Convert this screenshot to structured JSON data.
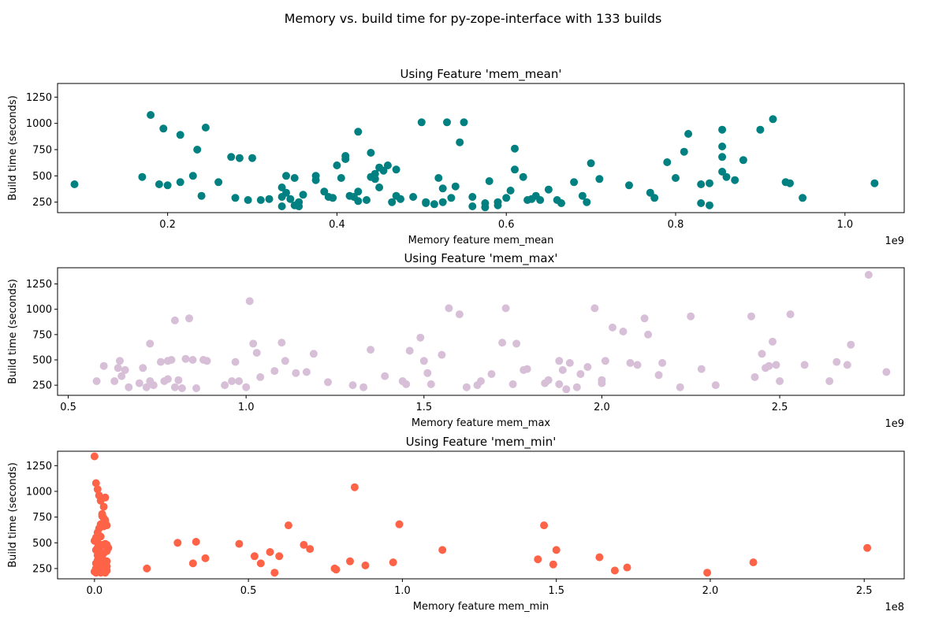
{
  "figure": {
    "suptitle": "Memory vs. build time for py-zope-interface with 133 builds"
  },
  "chart_data": [
    {
      "type": "scatter",
      "title": "Using Feature 'mem_mean'",
      "xlabel": "Memory feature mem_mean",
      "ylabel": "Build time (seconds)",
      "x_offset_label": "1e9",
      "color": "#008080",
      "xlim": [
        0.07,
        1.07
      ],
      "ylim": [
        150,
        1380
      ],
      "xticks": [
        0.2,
        0.4,
        0.6,
        0.8,
        1.0
      ],
      "xtick_labels": [
        "0.2",
        "0.4",
        "0.6",
        "0.8",
        "1.0"
      ],
      "yticks": [
        250,
        500,
        750,
        1000,
        1250
      ],
      "ytick_labels": [
        "250",
        "500",
        "750",
        "1000",
        "1250"
      ],
      "x": [
        0.09,
        0.17,
        0.18,
        0.19,
        0.195,
        0.2,
        0.215,
        0.215,
        0.23,
        0.235,
        0.24,
        0.245,
        0.26,
        0.275,
        0.28,
        0.285,
        0.295,
        0.3,
        0.31,
        0.32,
        0.335,
        0.335,
        0.335,
        0.34,
        0.34,
        0.345,
        0.35,
        0.35,
        0.355,
        0.355,
        0.36,
        0.375,
        0.375,
        0.385,
        0.39,
        0.395,
        0.4,
        0.405,
        0.41,
        0.41,
        0.415,
        0.42,
        0.425,
        0.425,
        0.425,
        0.435,
        0.44,
        0.44,
        0.445,
        0.445,
        0.45,
        0.45,
        0.455,
        0.46,
        0.465,
        0.47,
        0.47,
        0.475,
        0.49,
        0.5,
        0.505,
        0.505,
        0.515,
        0.52,
        0.525,
        0.525,
        0.53,
        0.535,
        0.54,
        0.545,
        0.55,
        0.56,
        0.56,
        0.575,
        0.575,
        0.58,
        0.59,
        0.59,
        0.6,
        0.605,
        0.61,
        0.61,
        0.62,
        0.625,
        0.63,
        0.635,
        0.64,
        0.65,
        0.66,
        0.665,
        0.68,
        0.69,
        0.695,
        0.7,
        0.71,
        0.745,
        0.77,
        0.775,
        0.79,
        0.8,
        0.81,
        0.815,
        0.83,
        0.83,
        0.84,
        0.84,
        0.855,
        0.855,
        0.855,
        0.855,
        0.86,
        0.87,
        0.88,
        0.9,
        0.915,
        0.93,
        0.935,
        0.95,
        1.035
      ],
      "y": [
        420,
        490,
        1080,
        420,
        950,
        410,
        890,
        440,
        500,
        750,
        310,
        960,
        440,
        680,
        290,
        670,
        270,
        670,
        270,
        280,
        210,
        300,
        390,
        500,
        340,
        280,
        480,
        220,
        250,
        210,
        320,
        460,
        500,
        350,
        300,
        290,
        600,
        480,
        690,
        660,
        310,
        300,
        260,
        350,
        920,
        270,
        720,
        490,
        470,
        520,
        580,
        390,
        550,
        600,
        250,
        560,
        310,
        280,
        300,
        1010,
        240,
        250,
        230,
        480,
        250,
        380,
        1010,
        290,
        400,
        820,
        1010,
        300,
        210,
        240,
        200,
        450,
        250,
        220,
        290,
        360,
        560,
        760,
        490,
        270,
        280,
        310,
        270,
        370,
        270,
        240,
        440,
        310,
        250,
        620,
        470,
        410,
        340,
        290,
        630,
        480,
        730,
        900,
        420,
        240,
        430,
        220,
        940,
        680,
        780,
        540,
        490,
        460,
        650,
        940,
        1040,
        440,
        430,
        290,
        430
      ]
    },
    {
      "type": "scatter",
      "title": "Using Feature 'mem_max'",
      "xlabel": "Memory feature mem_max",
      "ylabel": "Build time (seconds)",
      "x_offset_label": "1e9",
      "color": "#d8bfd8",
      "xlim": [
        0.47,
        2.85
      ],
      "ylim": [
        150,
        1410
      ],
      "xticks": [
        0.5,
        1.0,
        1.5,
        2.0,
        2.5
      ],
      "xtick_labels": [
        "0.5",
        "1.0",
        "1.5",
        "2.0",
        "2.5"
      ],
      "yticks": [
        250,
        500,
        750,
        1000,
        1250
      ],
      "ytick_labels": [
        "250",
        "500",
        "750",
        "1000",
        "1250"
      ],
      "x": [
        0.58,
        0.6,
        0.63,
        0.64,
        0.645,
        0.65,
        0.66,
        0.67,
        0.7,
        0.71,
        0.72,
        0.73,
        0.73,
        0.74,
        0.76,
        0.77,
        0.78,
        0.78,
        0.79,
        0.8,
        0.8,
        0.81,
        0.82,
        0.83,
        0.84,
        0.85,
        0.86,
        0.88,
        0.89,
        0.94,
        0.96,
        0.97,
        0.98,
        1.0,
        1.01,
        1.02,
        1.03,
        1.04,
        1.08,
        1.1,
        1.11,
        1.14,
        1.17,
        1.19,
        1.23,
        1.3,
        1.33,
        1.35,
        1.39,
        1.44,
        1.45,
        1.46,
        1.49,
        1.5,
        1.51,
        1.52,
        1.55,
        1.57,
        1.6,
        1.62,
        1.65,
        1.66,
        1.69,
        1.72,
        1.73,
        1.75,
        1.76,
        1.78,
        1.79,
        1.84,
        1.85,
        1.88,
        1.88,
        1.89,
        1.9,
        1.91,
        1.93,
        1.94,
        1.96,
        1.98,
        2.0,
        2.0,
        2.01,
        2.03,
        2.06,
        2.08,
        2.1,
        2.12,
        2.13,
        2.16,
        2.17,
        2.22,
        2.25,
        2.28,
        2.32,
        2.42,
        2.43,
        2.45,
        2.46,
        2.47,
        2.48,
        2.49,
        2.5,
        2.53,
        2.57,
        2.64,
        2.66,
        2.69,
        2.7,
        2.75,
        2.8
      ],
      "y": [
        290,
        440,
        290,
        420,
        490,
        340,
        400,
        230,
        270,
        420,
        230,
        660,
        290,
        250,
        480,
        290,
        310,
        490,
        500,
        230,
        890,
        300,
        220,
        510,
        910,
        500,
        220,
        500,
        490,
        250,
        290,
        480,
        290,
        230,
        1080,
        660,
        570,
        330,
        390,
        670,
        490,
        370,
        380,
        560,
        280,
        250,
        230,
        600,
        340,
        290,
        260,
        590,
        720,
        490,
        370,
        260,
        550,
        1010,
        950,
        230,
        250,
        290,
        360,
        670,
        1010,
        260,
        660,
        400,
        410,
        270,
        300,
        490,
        260,
        400,
        210,
        470,
        230,
        360,
        430,
        1010,
        270,
        300,
        490,
        820,
        780,
        470,
        450,
        910,
        750,
        350,
        470,
        230,
        930,
        410,
        250,
        930,
        330,
        560,
        420,
        440,
        680,
        450,
        290,
        950,
        450,
        290,
        480,
        450,
        650,
        1340,
        380
      ]
    },
    {
      "type": "scatter",
      "title": "Using Feature 'mem_min'",
      "xlabel": "Memory feature mem_min",
      "ylabel": "Build time (seconds)",
      "x_offset_label": "1e8",
      "color": "#ff6347",
      "xlim": [
        -0.12,
        2.63
      ],
      "ylim": [
        150,
        1390
      ],
      "xticks": [
        0.0,
        0.5,
        1.0,
        1.5,
        2.0,
        2.5
      ],
      "xtick_labels": [
        "0.0",
        "0.5",
        "1.0",
        "1.5",
        "2.0",
        "2.5"
      ],
      "yticks": [
        250,
        500,
        750,
        1000,
        1250
      ],
      "ytick_labels": [
        "250",
        "500",
        "750",
        "1000",
        "1250"
      ],
      "x": [
        0.0,
        0.0,
        0.005,
        0.005,
        0.005,
        0.01,
        0.01,
        0.01,
        0.01,
        0.01,
        0.015,
        0.015,
        0.015,
        0.015,
        0.02,
        0.02,
        0.02,
        0.02,
        0.025,
        0.025,
        0.025,
        0.025,
        0.03,
        0.03,
        0.03,
        0.03,
        0.035,
        0.035,
        0.035,
        0.04,
        0.04,
        0.04,
        0.04,
        0.045,
        0.005,
        0.01,
        0.015,
        0.02,
        0.025,
        0.03,
        0.035,
        0.04,
        0.0,
        0.005,
        0.01,
        0.015,
        0.02,
        0.025,
        0.03,
        0.035,
        0.005,
        0.01,
        0.02,
        0.03,
        0.035,
        0.04,
        0.17,
        0.27,
        0.32,
        0.33,
        0.36,
        0.47,
        0.52,
        0.54,
        0.57,
        0.585,
        0.6,
        0.63,
        0.68,
        0.7,
        0.78,
        0.785,
        0.83,
        0.845,
        0.88,
        0.97,
        0.99,
        1.13,
        1.44,
        1.46,
        1.49,
        1.5,
        1.64,
        1.69,
        1.73,
        1.99,
        2.14,
        2.51
      ],
      "y": [
        220,
        1340,
        210,
        250,
        300,
        240,
        280,
        330,
        380,
        450,
        220,
        260,
        310,
        420,
        470,
        210,
        250,
        300,
        360,
        480,
        230,
        260,
        290,
        400,
        220,
        250,
        310,
        490,
        210,
        230,
        270,
        320,
        420,
        450,
        1080,
        1020,
        960,
        910,
        780,
        740,
        700,
        670,
        520,
        550,
        600,
        640,
        680,
        760,
        850,
        940,
        430,
        500,
        560,
        660,
        720,
        480,
        250,
        500,
        300,
        510,
        350,
        490,
        370,
        300,
        410,
        210,
        370,
        670,
        480,
        440,
        250,
        240,
        320,
        1040,
        280,
        310,
        680,
        430,
        340,
        670,
        290,
        430,
        360,
        230,
        260,
        210,
        310,
        450
      ]
    }
  ]
}
